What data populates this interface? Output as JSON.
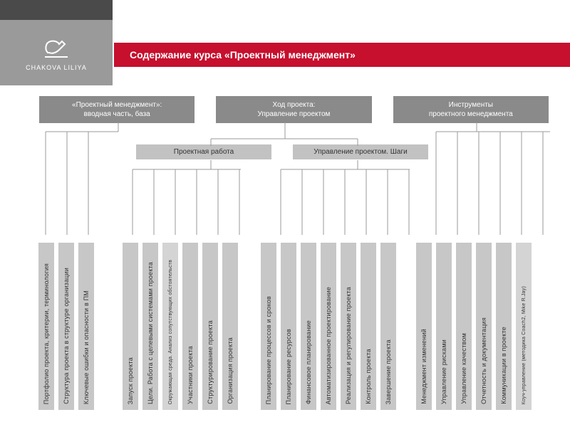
{
  "brand": {
    "name": "CHAKOVA LILIYA"
  },
  "title": "Содержание курса «Проектный менеджмент»",
  "top_nodes": [
    {
      "line1": "«Проектный менеджмент»:",
      "line2": "вводная часть, база"
    },
    {
      "line1": "Ход проекта:",
      "line2": "Управление проектом"
    },
    {
      "line1": "Инструменты",
      "line2": "проектного менеджмента"
    }
  ],
  "mid_nodes": [
    {
      "label": "Проектная работа"
    },
    {
      "label": "Управление проектом. Шаги"
    }
  ],
  "columns": [
    {
      "label": "Портфолио проекта, критерии, терминология",
      "group": 0
    },
    {
      "label": "Структура проекта в структуре организации",
      "group": 0
    },
    {
      "label": "Ключевые ошибки и опасности в ПМ",
      "group": 0
    },
    {
      "label": "Запуск проекта",
      "group": 1
    },
    {
      "label": "Цели. Работа с целевыми системами проекта",
      "group": 1
    },
    {
      "label": "Окружающая среда. Анализ сопутствующих обстоятельств",
      "group": 1,
      "small": true
    },
    {
      "label": "Участники проекта",
      "group": 1
    },
    {
      "label": "Структурирование проекта",
      "group": 1
    },
    {
      "label": "Организация проекта",
      "group": 1
    },
    {
      "label": "Планирование процессов и сроков",
      "group": 2
    },
    {
      "label": "Планирование ресурсов",
      "group": 2
    },
    {
      "label": "Финансовое планирование",
      "group": 2
    },
    {
      "label": "Автоматизированное проектирование",
      "group": 2
    },
    {
      "label": "Реализация и регулирование проекта",
      "group": 2
    },
    {
      "label": "Контроль проекта",
      "group": 2
    },
    {
      "label": "Завершение проекта",
      "group": 2
    },
    {
      "label": "Менеджмент изменений",
      "group": 3
    },
    {
      "label": "Управление рисками",
      "group": 3
    },
    {
      "label": "Управление качеством",
      "group": 3
    },
    {
      "label": "Отчетность и документация",
      "group": 3
    },
    {
      "label": "Коммуникации в проекте",
      "group": 3
    },
    {
      "label": "Коуч-управление (методика Coach2, Mike R.Jay)",
      "group": 3,
      "small": true
    }
  ],
  "colors": {
    "accent": "#c6102e",
    "dark_grey": "#4a4a4a",
    "mid_grey": "#9a9a9a",
    "node_grey": "#8a8a8a",
    "light_grey": "#c7c7c7",
    "lighter_grey": "#d4d4d4",
    "connector": "#9a9a9a"
  }
}
